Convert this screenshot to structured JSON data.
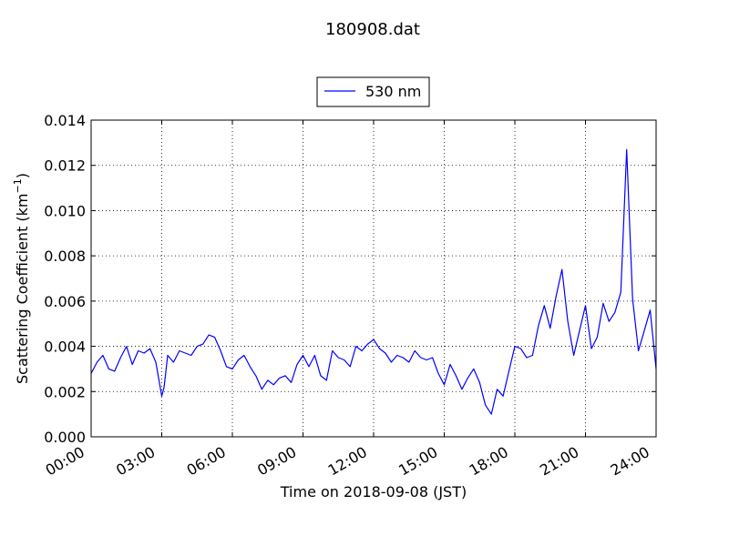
{
  "chart_data": {
    "type": "line",
    "title": "180908.dat",
    "xlabel": "Time on 2018-09-08 (JST)",
    "ylabel": "Scattering Coefficient (km",
    "ylabel_unit_sup": "−1",
    "ylabel_close": ")",
    "xlim": [
      0,
      24
    ],
    "ylim": [
      0,
      0.014
    ],
    "grid": true,
    "legend_placement": "top-center",
    "x_ticks": [
      0,
      3,
      6,
      9,
      12,
      15,
      18,
      21,
      24
    ],
    "x_tick_labels": [
      "00:00",
      "03:00",
      "06:00",
      "09:00",
      "12:00",
      "15:00",
      "18:00",
      "21:00",
      "24:00"
    ],
    "y_ticks": [
      0,
      0.002,
      0.004,
      0.006,
      0.008,
      0.01,
      0.012,
      0.014
    ],
    "y_tick_labels": [
      "0.000",
      "0.002",
      "0.004",
      "0.006",
      "0.008",
      "0.010",
      "0.012",
      "0.014"
    ],
    "series": [
      {
        "name": "530 nm",
        "color": "#0000ff",
        "x": [
          0.0,
          0.25,
          0.5,
          0.75,
          1.0,
          1.25,
          1.5,
          1.75,
          2.0,
          2.25,
          2.5,
          2.75,
          3.0,
          3.1,
          3.25,
          3.5,
          3.75,
          4.0,
          4.25,
          4.5,
          4.75,
          5.0,
          5.25,
          5.5,
          5.75,
          6.0,
          6.25,
          6.5,
          6.75,
          7.0,
          7.25,
          7.5,
          7.75,
          8.0,
          8.25,
          8.5,
          8.75,
          9.0,
          9.25,
          9.5,
          9.75,
          10.0,
          10.25,
          10.5,
          10.75,
          11.0,
          11.25,
          11.5,
          11.75,
          12.0,
          12.25,
          12.5,
          12.75,
          13.0,
          13.25,
          13.5,
          13.75,
          14.0,
          14.25,
          14.5,
          14.75,
          15.0,
          15.25,
          15.5,
          15.75,
          16.0,
          16.25,
          16.5,
          16.75,
          17.0,
          17.25,
          17.5,
          17.75,
          18.0,
          18.25,
          18.5,
          18.75,
          19.0,
          19.25,
          19.5,
          19.75,
          20.0,
          20.25,
          20.5,
          20.75,
          21.0,
          21.25,
          21.5,
          21.75,
          22.0,
          22.25,
          22.5,
          22.75,
          23.0,
          23.25,
          23.5,
          23.75,
          24.0
        ],
        "values": [
          0.0028,
          0.0033,
          0.0036,
          0.003,
          0.0029,
          0.0035,
          0.004,
          0.0032,
          0.0038,
          0.0037,
          0.0039,
          0.0033,
          0.0018,
          0.0022,
          0.0036,
          0.0033,
          0.0038,
          0.0037,
          0.0036,
          0.004,
          0.0041,
          0.0045,
          0.0044,
          0.0038,
          0.0031,
          0.003,
          0.0034,
          0.0036,
          0.0031,
          0.0027,
          0.0021,
          0.0025,
          0.0023,
          0.0026,
          0.0027,
          0.0024,
          0.0032,
          0.0036,
          0.0031,
          0.0036,
          0.0027,
          0.0025,
          0.0038,
          0.0035,
          0.0034,
          0.0031,
          0.004,
          0.0038,
          0.0041,
          0.0043,
          0.0039,
          0.0037,
          0.0033,
          0.0036,
          0.0035,
          0.0033,
          0.0038,
          0.0035,
          0.0034,
          0.0035,
          0.0028,
          0.0023,
          0.0032,
          0.0027,
          0.0021,
          0.0026,
          0.003,
          0.0024,
          0.0014,
          0.001,
          0.0021,
          0.0018,
          0.0029,
          0.004,
          0.0039,
          0.0035,
          0.0036,
          0.0049,
          0.0058,
          0.0048,
          0.0062,
          0.0074,
          0.0051,
          0.0036,
          0.0047,
          0.0058,
          0.0039,
          0.0044,
          0.0059,
          0.0051,
          0.0055,
          0.0064,
          0.0127,
          0.0061,
          0.0038,
          0.0047,
          0.0056,
          0.003
        ]
      }
    ]
  }
}
